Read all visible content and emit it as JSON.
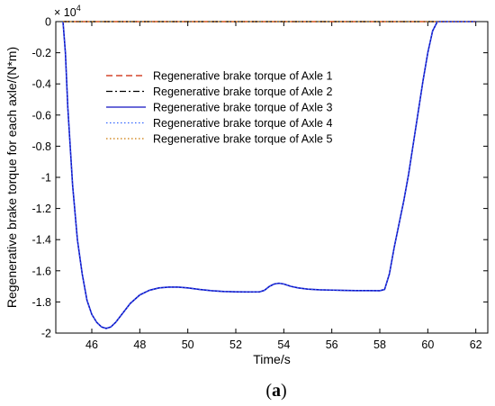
{
  "chart_data": {
    "type": "line",
    "xlabel": "Time/s",
    "ylabel": "Regenerative brake torque for each axle/(N*m)",
    "y_multiplier": "× 10",
    "y_multiplier_exp": "4",
    "xlim": [
      44.5,
      62.5
    ],
    "ylim": [
      -2,
      0
    ],
    "xticks": [
      46,
      48,
      50,
      52,
      54,
      56,
      58,
      60,
      62
    ],
    "xtick_labels": [
      "46",
      "48",
      "50",
      "52",
      "54",
      "56",
      "58",
      "60",
      "62"
    ],
    "yticks": [
      0,
      -0.2,
      -0.4,
      -0.6,
      -0.8,
      -1,
      -1.2,
      -1.4,
      -1.6,
      -1.8,
      -2
    ],
    "ytick_labels": [
      "0",
      "-0.2",
      "-0.4",
      "-0.6",
      "-0.8",
      "-1",
      "-1.2",
      "-1.4",
      "-1.6",
      "-1.8",
      "-2"
    ],
    "grid": false,
    "legend_position": "center-left",
    "series": [
      {
        "name": "Regenerative brake torque of Axle 1",
        "color": "#cc2200",
        "style": "dashed",
        "x": [
          44.8,
          62
        ],
        "y": [
          0,
          0
        ]
      },
      {
        "name": "Regenerative brake torque of Axle 2",
        "color": "#000000",
        "style": "dashdot",
        "x": [
          44.8,
          62
        ],
        "y": [
          0,
          0
        ]
      },
      {
        "name": "Regenerative brake torque of Axle 3",
        "color": "#1010c0",
        "style": "solid",
        "x": [
          44.8,
          44.9,
          45.0,
          45.2,
          45.4,
          45.6,
          45.8,
          46.0,
          46.2,
          46.4,
          46.6,
          46.8,
          47.0,
          47.3,
          47.6,
          48.0,
          48.4,
          48.8,
          49.2,
          49.6,
          50.0,
          50.5,
          51.0,
          51.5,
          52.0,
          52.5,
          53.0,
          53.2,
          53.4,
          53.6,
          53.8,
          54.0,
          54.3,
          54.6,
          55.0,
          55.5,
          56.0,
          56.5,
          57.0,
          57.5,
          58.0,
          58.2,
          58.4,
          58.6,
          58.8,
          59.0,
          59.2,
          59.4,
          59.6,
          59.8,
          60.0,
          60.2,
          60.4,
          61.0,
          62.0
        ],
        "y": [
          0,
          -0.2,
          -0.55,
          -1.05,
          -1.4,
          -1.62,
          -1.79,
          -1.88,
          -1.93,
          -1.96,
          -1.97,
          -1.96,
          -1.93,
          -1.87,
          -1.81,
          -1.755,
          -1.725,
          -1.71,
          -1.705,
          -1.705,
          -1.71,
          -1.72,
          -1.728,
          -1.733,
          -1.735,
          -1.736,
          -1.735,
          -1.725,
          -1.7,
          -1.685,
          -1.68,
          -1.685,
          -1.7,
          -1.71,
          -1.718,
          -1.722,
          -1.724,
          -1.726,
          -1.727,
          -1.727,
          -1.728,
          -1.72,
          -1.62,
          -1.45,
          -1.3,
          -1.15,
          -0.98,
          -0.78,
          -0.58,
          -0.38,
          -0.2,
          -0.06,
          0,
          0,
          0
        ]
      },
      {
        "name": "Regenerative brake torque of Axle 4",
        "color": "#3366ff",
        "style": "dotted",
        "x": [
          44.8,
          44.9,
          45.0,
          45.2,
          45.4,
          45.6,
          45.8,
          46.0,
          46.2,
          46.4,
          46.6,
          46.8,
          47.0,
          47.3,
          47.6,
          48.0,
          48.4,
          48.8,
          49.2,
          49.6,
          50.0,
          50.5,
          51.0,
          51.5,
          52.0,
          52.5,
          53.0,
          53.2,
          53.4,
          53.6,
          53.8,
          54.0,
          54.3,
          54.6,
          55.0,
          55.5,
          56.0,
          56.5,
          57.0,
          57.5,
          58.0,
          58.2,
          58.4,
          58.6,
          58.8,
          59.0,
          59.2,
          59.4,
          59.6,
          59.8,
          60.0,
          60.2,
          60.4,
          61.0,
          62.0
        ],
        "y": [
          0,
          -0.2,
          -0.55,
          -1.05,
          -1.4,
          -1.62,
          -1.79,
          -1.88,
          -1.93,
          -1.96,
          -1.97,
          -1.96,
          -1.93,
          -1.87,
          -1.81,
          -1.755,
          -1.725,
          -1.71,
          -1.705,
          -1.705,
          -1.71,
          -1.72,
          -1.728,
          -1.733,
          -1.735,
          -1.736,
          -1.735,
          -1.725,
          -1.7,
          -1.685,
          -1.68,
          -1.685,
          -1.7,
          -1.71,
          -1.718,
          -1.722,
          -1.724,
          -1.726,
          -1.727,
          -1.727,
          -1.728,
          -1.72,
          -1.62,
          -1.45,
          -1.3,
          -1.15,
          -0.98,
          -0.78,
          -0.58,
          -0.38,
          -0.2,
          -0.06,
          0,
          0,
          0
        ]
      },
      {
        "name": "Regenerative brake torque of Axle 5",
        "color": "#cc7700",
        "style": "dotted",
        "x": [
          44.8,
          62
        ],
        "y": [
          0,
          0
        ]
      }
    ]
  },
  "caption": {
    "open": "(",
    "letter": "a",
    "close": ")"
  }
}
